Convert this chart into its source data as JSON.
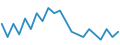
{
  "x": [
    0,
    1,
    2,
    3,
    4,
    5,
    6,
    7,
    8,
    9,
    10,
    11,
    12,
    13,
    14,
    15,
    16,
    17,
    18,
    19,
    20
  ],
  "y": [
    6.5,
    4.0,
    6.5,
    4.5,
    7.5,
    5.5,
    8.5,
    7.0,
    9.5,
    8.5,
    9.0,
    7.0,
    5.0,
    4.5,
    4.0,
    5.5,
    4.5,
    3.5,
    5.5,
    4.0,
    5.0
  ],
  "line_color": "#2b8fc4",
  "linewidth": 1.3,
  "background_color": "#ffffff",
  "ylim": [
    2.5,
    11.0
  ],
  "xlim": [
    -0.3,
    20.3
  ]
}
